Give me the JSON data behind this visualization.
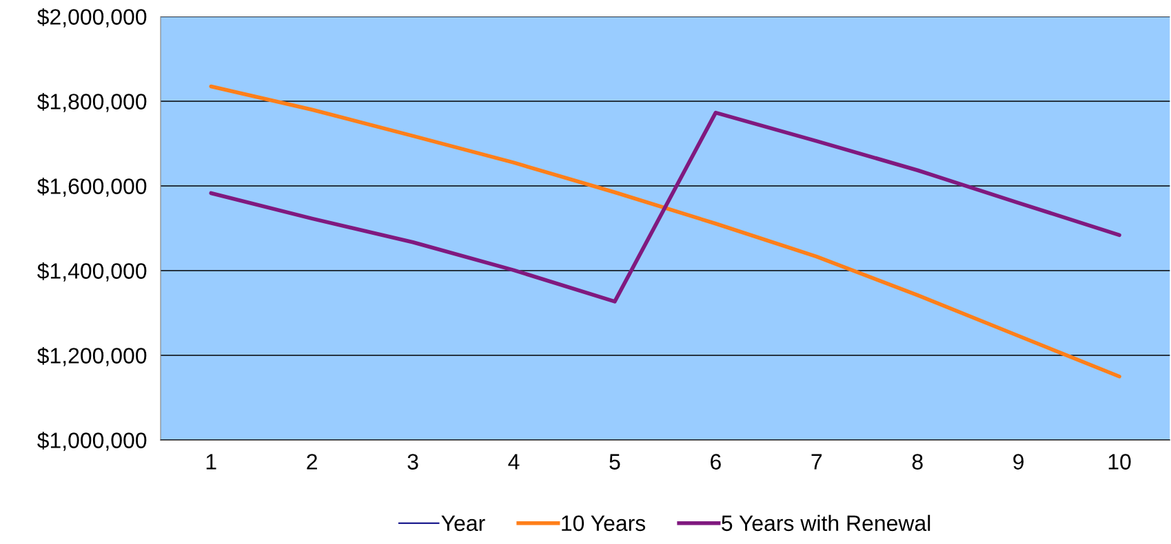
{
  "chart_data": {
    "type": "line",
    "categories": [
      "1",
      "2",
      "3",
      "4",
      "5",
      "6",
      "7",
      "8",
      "9",
      "10"
    ],
    "series": [
      {
        "name": "Year",
        "color": "#000080",
        "values": [
          null,
          null,
          null,
          null,
          null,
          null,
          null,
          null,
          null,
          null
        ]
      },
      {
        "name": "10 Years",
        "color": "#ff7f1a",
        "values": [
          1835000,
          1780000,
          1718000,
          1655000,
          1585000,
          1511000,
          1433000,
          1342000,
          1246000,
          1150000
        ]
      },
      {
        "name": "5 Years with Renewal",
        "color": "#80197f",
        "values": [
          1583000,
          1523000,
          1467000,
          1401000,
          1327000,
          1773000,
          1706000,
          1637000,
          1560000,
          1484000
        ]
      }
    ],
    "ylim": [
      1000000,
      2000000
    ],
    "yticks": [
      {
        "value": 1000000,
        "label": "$1,000,000"
      },
      {
        "value": 1200000,
        "label": "$1,200,000"
      },
      {
        "value": 1400000,
        "label": "$1,400,000"
      },
      {
        "value": 1600000,
        "label": "$1,600,000"
      },
      {
        "value": 1800000,
        "label": "$1,800,000"
      },
      {
        "value": 2000000,
        "label": "$2,000,000"
      }
    ],
    "grid": "y",
    "legend": "bottom",
    "marker": "none",
    "line_style": "solid"
  }
}
